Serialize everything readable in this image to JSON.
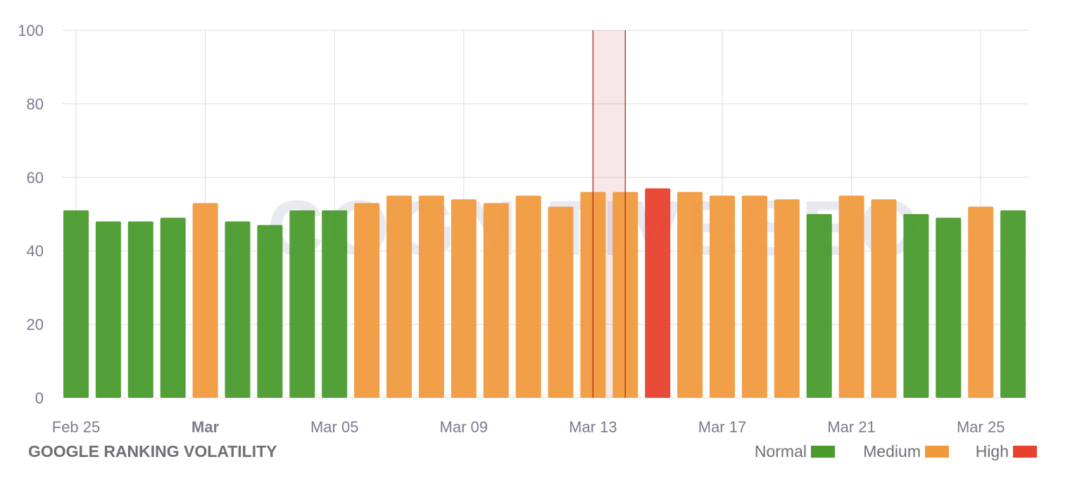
{
  "chart_data": {
    "type": "bar",
    "title": "GOOGLE RANKING VOLATILITY",
    "watermark": "COGNITIVESEO",
    "xlabel": "",
    "ylabel": "",
    "ylim": [
      0,
      100
    ],
    "yticks": [
      0,
      20,
      40,
      60,
      80,
      100
    ],
    "grid": true,
    "legend_position": "bottom-right",
    "legend": [
      {
        "name": "Normal",
        "color": "#4a9a2d"
      },
      {
        "name": "Medium",
        "color": "#f09a3e"
      },
      {
        "name": "High",
        "color": "#e8412e"
      }
    ],
    "categories": [
      "Feb 25",
      "Feb 26",
      "Feb 27",
      "Feb 28",
      "Mar 01",
      "Mar 02",
      "Mar 03",
      "Mar 04",
      "Mar 05",
      "Mar 06",
      "Mar 07",
      "Mar 08",
      "Mar 09",
      "Mar 10",
      "Mar 11",
      "Mar 12",
      "Mar 13",
      "Mar 14",
      "Mar 15",
      "Mar 16",
      "Mar 17",
      "Mar 18",
      "Mar 19",
      "Mar 20",
      "Mar 21",
      "Mar 22",
      "Mar 23",
      "Mar 24",
      "Mar 25",
      "Mar 26"
    ],
    "values": [
      51,
      48,
      48,
      49,
      53,
      48,
      47,
      51,
      51,
      53,
      55,
      55,
      54,
      53,
      55,
      52,
      56,
      56,
      57,
      56,
      55,
      55,
      54,
      50,
      55,
      54,
      50,
      49,
      52,
      51
    ],
    "levels": [
      "Normal",
      "Normal",
      "Normal",
      "Normal",
      "Medium",
      "Normal",
      "Normal",
      "Normal",
      "Normal",
      "Medium",
      "Medium",
      "Medium",
      "Medium",
      "Medium",
      "Medium",
      "Medium",
      "Medium",
      "Medium",
      "High",
      "Medium",
      "Medium",
      "Medium",
      "Medium",
      "Normal",
      "Medium",
      "Medium",
      "Normal",
      "Normal",
      "Medium",
      "Normal"
    ],
    "xtick_labels": [
      {
        "index": 0,
        "label": "Feb 25",
        "bold": false
      },
      {
        "index": 4,
        "label": "Mar",
        "bold": true
      },
      {
        "index": 8,
        "label": "Mar 05",
        "bold": false
      },
      {
        "index": 12,
        "label": "Mar 09",
        "bold": false
      },
      {
        "index": 16,
        "label": "Mar 13",
        "bold": false
      },
      {
        "index": 20,
        "label": "Mar 17",
        "bold": false
      },
      {
        "index": 24,
        "label": "Mar 21",
        "bold": false
      },
      {
        "index": 28,
        "label": "Mar 25",
        "bold": false
      }
    ],
    "highlight_band": {
      "from": "Mar 13",
      "to": "Mar 14",
      "color": "#b5231a"
    }
  }
}
